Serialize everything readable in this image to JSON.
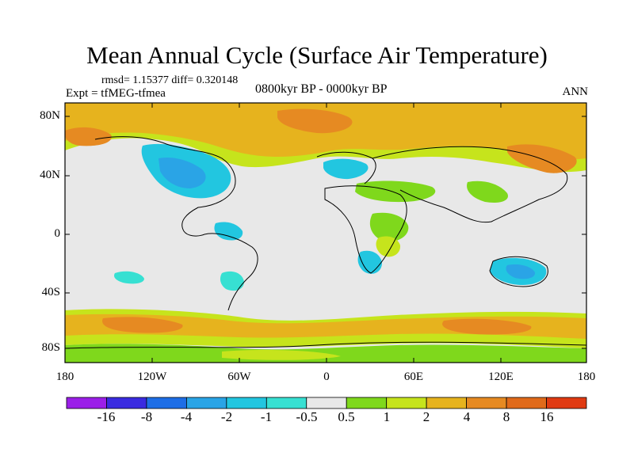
{
  "header": {
    "title": "Mean Annual Cycle (Surface Air Temperature)",
    "stats": "rmsd= 1.15377 diff= 0.320148",
    "experiment": "Expt = tfMEG-tfmea",
    "period": "0800kyr BP - 0000kyr BP",
    "season": "ANN"
  },
  "lat_axis": [
    "80N",
    "40N",
    "0",
    "40S",
    "80S"
  ],
  "lon_axis": [
    "180",
    "120W",
    "60W",
    "0",
    "60E",
    "120E",
    "180"
  ],
  "colorbar": {
    "labels": [
      "-16",
      "-8",
      "-4",
      "-2",
      "-1",
      "-0.5",
      "0.5",
      "1",
      "2",
      "4",
      "8",
      "16"
    ],
    "colors": [
      "#9b1fe8",
      "#3a2be0",
      "#1e6ee6",
      "#2aa4e6",
      "#22c6e0",
      "#37e0d2",
      "#e8e8e8",
      "#7fd81c",
      "#c6e41c",
      "#e6b31e",
      "#e68a22",
      "#e06a1a",
      "#e03a12"
    ]
  }
}
